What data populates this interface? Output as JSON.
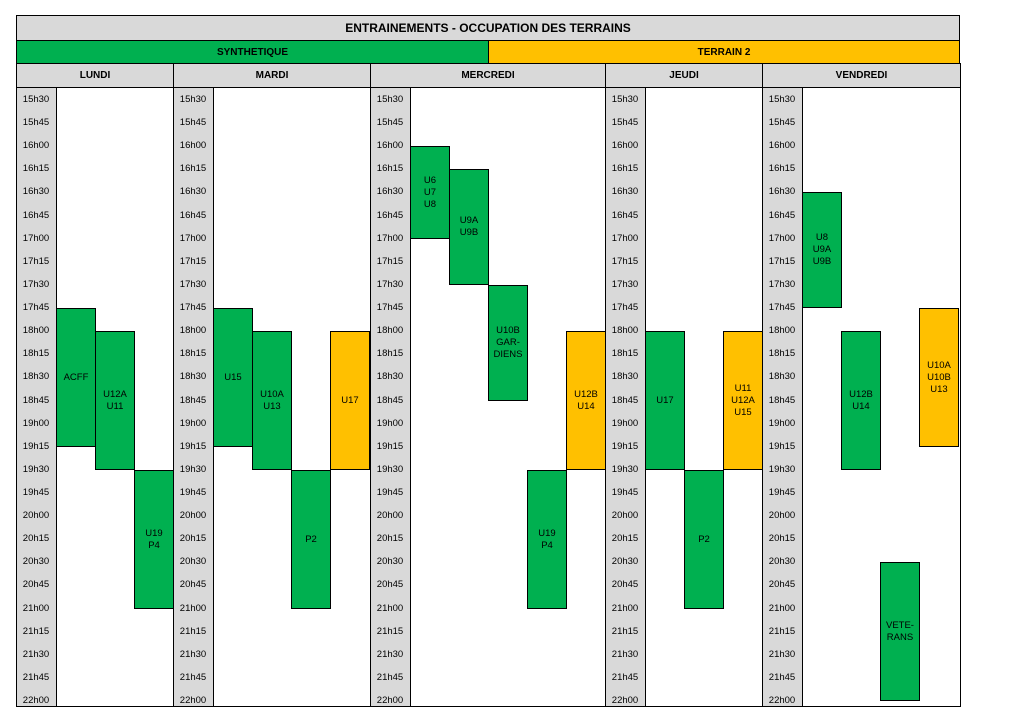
{
  "title": "ENTRAINEMENTS - OCCUPATION DES TERRAINS",
  "fields": [
    {
      "key": "syn",
      "label": "SYNTHETIQUE",
      "color": "#00b050"
    },
    {
      "key": "t2",
      "label": "TERRAIN 2",
      "color": "#ffc000"
    }
  ],
  "times": [
    "15h30",
    "15h45",
    "16h00",
    "16h15",
    "16h30",
    "16h45",
    "17h00",
    "17h15",
    "17h30",
    "17h45",
    "18h00",
    "18h15",
    "18h30",
    "18h45",
    "19h00",
    "19h15",
    "19h30",
    "19h45",
    "20h00",
    "20h15",
    "20h30",
    "20h45",
    "21h00",
    "21h15",
    "21h30",
    "21h45",
    "22h00"
  ],
  "days": [
    {
      "name": "LUNDI",
      "sessions": [
        {
          "label": "ACFF",
          "field": "syn",
          "lane": 0,
          "start": "17h45",
          "end": "19h15"
        },
        {
          "label": "U12A\nU11",
          "field": "syn",
          "lane": 1,
          "start": "18h00",
          "end": "19h30"
        },
        {
          "label": "U19\nP4",
          "field": "syn",
          "lane": 2,
          "start": "19h30",
          "end": "21h00"
        }
      ]
    },
    {
      "name": "MARDI",
      "sessions": [
        {
          "label": "U15",
          "field": "syn",
          "lane": 0,
          "start": "17h45",
          "end": "19h15"
        },
        {
          "label": "U10A\nU13",
          "field": "syn",
          "lane": 1,
          "start": "18h00",
          "end": "19h30"
        },
        {
          "label": "P2",
          "field": "syn",
          "lane": 2,
          "start": "19h30",
          "end": "21h00"
        },
        {
          "label": "U17",
          "field": "t2",
          "lane": 3,
          "start": "18h00",
          "end": "19h30"
        }
      ]
    },
    {
      "name": "MERCREDI",
      "sessions": [
        {
          "label": "U6\nU7\nU8",
          "field": "syn",
          "lane": 0,
          "start": "16h00",
          "end": "17h00"
        },
        {
          "label": "U9A\nU9B",
          "field": "syn",
          "lane": 1,
          "start": "16h15",
          "end": "17h30"
        },
        {
          "label": "U10B\nGAR-\nDIENS",
          "field": "syn",
          "lane": 2,
          "start": "17h30",
          "end": "18h45"
        },
        {
          "label": "U19\nP4",
          "field": "syn",
          "lane": 3,
          "start": "19h30",
          "end": "21h00"
        },
        {
          "label": "U12B\nU14",
          "field": "t2",
          "lane": 4,
          "start": "18h00",
          "end": "19h30"
        }
      ]
    },
    {
      "name": "JEUDI",
      "sessions": [
        {
          "label": "U17",
          "field": "syn",
          "lane": 0,
          "start": "18h00",
          "end": "19h30"
        },
        {
          "label": "P2",
          "field": "syn",
          "lane": 1,
          "start": "19h30",
          "end": "21h00"
        },
        {
          "label": "U11\nU12A\nU15",
          "field": "t2",
          "lane": 2,
          "start": "18h00",
          "end": "19h30"
        }
      ]
    },
    {
      "name": "VENDREDI",
      "sessions": [
        {
          "label": "U8\nU9A\nU9B",
          "field": "syn",
          "lane": 0,
          "start": "16h30",
          "end": "17h45"
        },
        {
          "label": "U12B\nU14",
          "field": "syn",
          "lane": 1,
          "start": "18h00",
          "end": "19h30"
        },
        {
          "label": "VETE-\nRANS",
          "field": "syn",
          "lane": 2,
          "start": "20h30",
          "end": "22h00"
        },
        {
          "label": "U10A\nU10B\nU13",
          "field": "t2",
          "lane": 3,
          "start": "17h45",
          "end": "19h15"
        }
      ]
    }
  ]
}
